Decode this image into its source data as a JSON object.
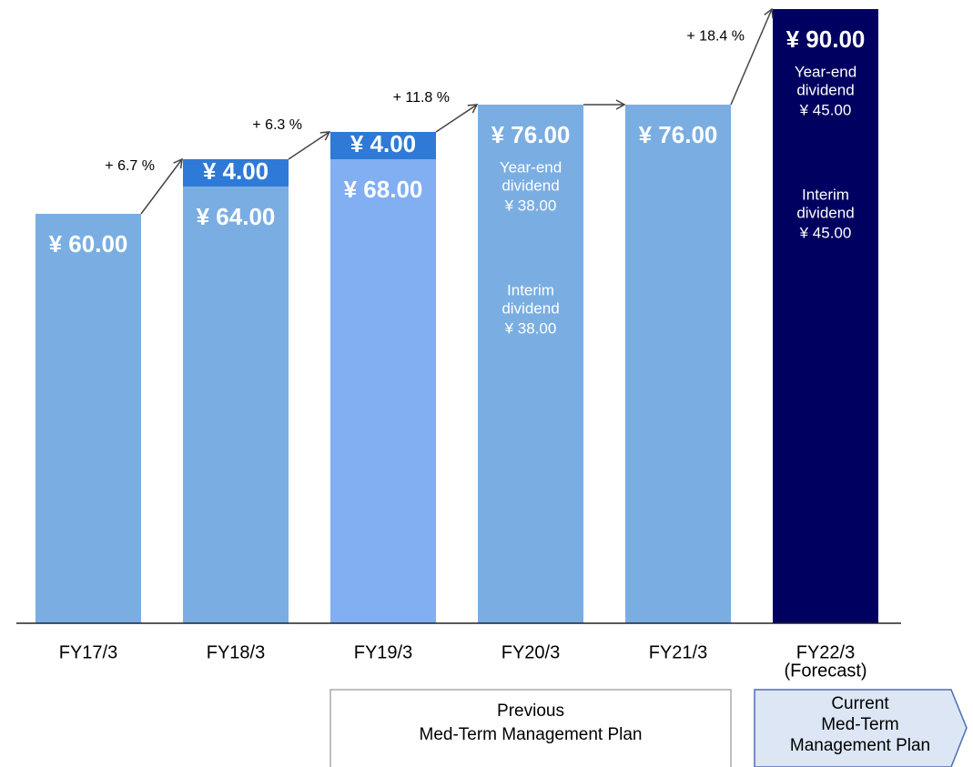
{
  "chart_data": {
    "type": "stacked_bar",
    "categories": [
      "FY17/3",
      "FY18/3",
      "FY19/3",
      "FY20/3",
      "FY21/3",
      "FY22/3"
    ],
    "forecast_note": "(Forecast)",
    "ylim": [
      0,
      90
    ],
    "series": [
      {
        "colors": [
          "#7aaee2",
          "#7aaee2",
          "#82aef2",
          "#7aaee2",
          "#7aaee2",
          "#000060"
        ],
        "values": [
          60,
          64,
          68,
          76,
          76,
          90
        ],
        "value_labels": [
          "¥ 60.00",
          "¥ 64.00",
          "¥ 68.00",
          "¥ 76.00",
          "¥ 76.00",
          "¥ 90.00"
        ]
      },
      {
        "color": "#2e7ad6",
        "values": [
          null,
          4,
          4,
          null,
          null,
          null
        ],
        "value_labels": [
          null,
          "¥ 4.00",
          "¥ 4.00",
          null,
          null,
          null
        ]
      }
    ],
    "year_end_dividend": {
      "label": [
        "Year-end",
        "dividend"
      ],
      "values": [
        null,
        null,
        null,
        38,
        null,
        45
      ],
      "value_labels": [
        null,
        null,
        null,
        "¥ 38.00",
        null,
        "¥ 45.00"
      ]
    },
    "interim_dividend": {
      "label": [
        "Interim",
        "dividend"
      ],
      "values": [
        null,
        null,
        null,
        38,
        null,
        45
      ],
      "value_labels": [
        null,
        null,
        null,
        "¥ 38.00",
        null,
        "¥ 45.00"
      ]
    },
    "growth": {
      "values": [
        6.7,
        6.3,
        11.8,
        null,
        18.4
      ],
      "value_labels": [
        "+ 6.7 %",
        "+ 6.3 %",
        "+ 11.8 %",
        null,
        "+ 18.4 %"
      ]
    },
    "plans": [
      {
        "lines": [
          "Previous",
          "Med-Term Management Plan"
        ]
      },
      {
        "lines": [
          "Current",
          "Med-Term",
          "Management Plan"
        ]
      }
    ]
  }
}
